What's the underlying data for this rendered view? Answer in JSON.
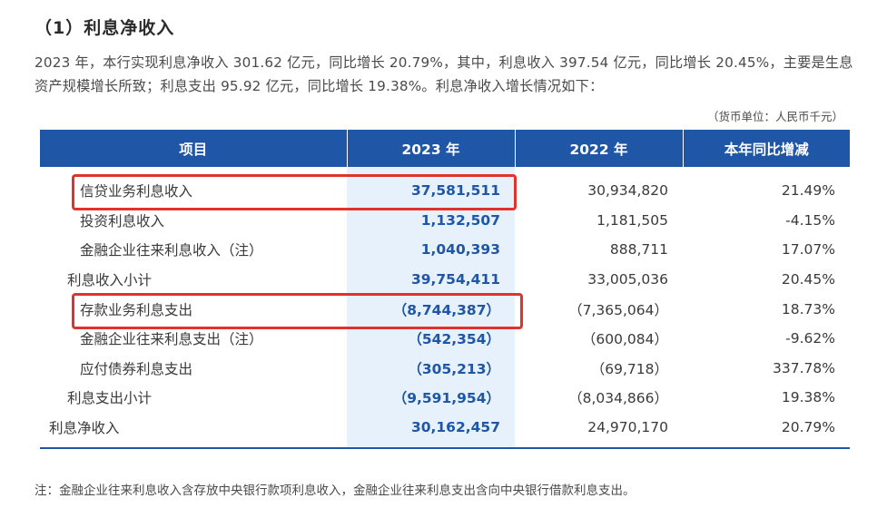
{
  "heading": "（1）利息净收入",
  "paragraph": "2023 年，本行实现利息净收入 301.62 亿元，同比增长 20.79%，其中，利息收入 397.54 亿元，同比增长 20.45%，主要是生息资产规模增长所致；利息支出 95.92 亿元，同比增长 19.38%。利息净收入增长情况如下：",
  "unit": "（货币单位：人民币千元）",
  "table": {
    "headers": [
      "项目",
      "2023 年",
      "2022 年",
      "本年同比增减"
    ],
    "rows": [
      {
        "label": "信贷业务利息收入",
        "v2023": "37,581,511",
        "v2022": "30,934,820",
        "yoy": "21.49%"
      },
      {
        "label": "投资利息收入",
        "v2023": "1,132,507",
        "v2022": "1,181,505",
        "yoy": "-4.15%"
      },
      {
        "label": "金融企业往来利息收入（注）",
        "v2023": "1,040,393",
        "v2022": "888,711",
        "yoy": "17.07%"
      },
      {
        "label": "利息收入小计",
        "v2023": "39,754,411",
        "v2022": "33,005,036",
        "yoy": "20.45%"
      },
      {
        "label": "存款业务利息支出",
        "v2023": "（8,744,387）",
        "v2022": "（7,365,064）",
        "yoy": "18.73%"
      },
      {
        "label": "金融企业往来利息支出（注）",
        "v2023": "（542,354）",
        "v2022": "（600,084）",
        "yoy": "-9.62%"
      },
      {
        "label": "应付债券利息支出",
        "v2023": "（305,213）",
        "v2022": "（69,718）",
        "yoy": "337.78%"
      },
      {
        "label": "利息支出小计",
        "v2023": "（9,591,954）",
        "v2022": "（8,034,866）",
        "yoy": "19.38%"
      },
      {
        "label": "利息净收入",
        "v2023": "30,162,457",
        "v2022": "24,970,170",
        "yoy": "20.79%"
      }
    ]
  },
  "note": "注：金融企业往来利息收入含存放中央银行款项利息收入，金融企业往来利息支出含向中央银行借款利息支出。",
  "colors": {
    "header_bg": "#1f56a6",
    "highlight_col": "#e6f1fb",
    "annotation_box": "#e0332e"
  }
}
